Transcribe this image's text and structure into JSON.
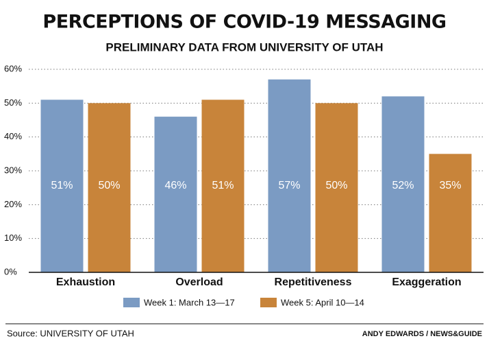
{
  "chart_data": {
    "type": "bar",
    "title": "PERCEPTIONS OF COVID-19 MESSAGING",
    "subtitle": "PRELIMINARY DATA FROM UNIVERSITY OF UTAH",
    "categories": [
      "Exhaustion",
      "Overload",
      "Repetitiveness",
      "Exaggeration"
    ],
    "series": [
      {
        "name": "Week 1: March 13—17",
        "color": "#7b9bc3",
        "values": [
          51,
          46,
          57,
          52
        ],
        "value_labels": [
          "51%",
          "46%",
          "57%",
          "52%"
        ]
      },
      {
        "name": "Week 5: April 10—14",
        "color": "#c8843a",
        "values": [
          50,
          51,
          50,
          35
        ],
        "value_labels": [
          "50%",
          "51%",
          "50%",
          "35%"
        ]
      }
    ],
    "ylim": [
      0,
      60
    ],
    "yticks": [
      {
        "value": 0,
        "label": "0%"
      },
      {
        "value": 10,
        "label": "10%"
      },
      {
        "value": 20,
        "label": "20%"
      },
      {
        "value": 30,
        "label": "30%"
      },
      {
        "value": 40,
        "label": "40%"
      },
      {
        "value": 50,
        "label": "50%"
      },
      {
        "value": 60,
        "label": "60%"
      }
    ],
    "grid": true,
    "legend": "bottom",
    "source": "Source: UNIVERSITY OF UTAH",
    "credit": "ANDY EDWARDS / NEWS&GUIDE"
  }
}
